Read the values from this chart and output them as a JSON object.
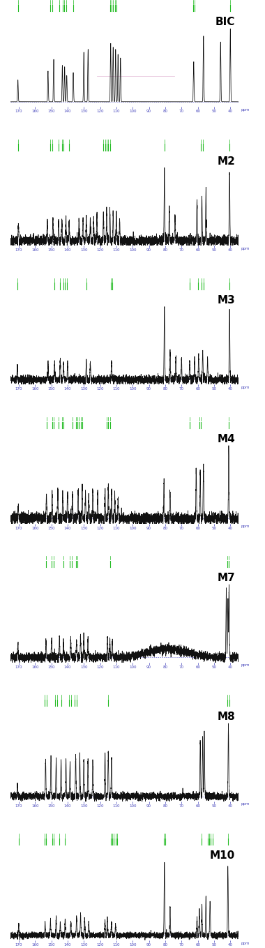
{
  "panels": [
    {
      "label": "BIC",
      "peaks": [
        170.5,
        152.0,
        148.5,
        143.2,
        141.8,
        140.5,
        136.5,
        130.0,
        127.4,
        113.5,
        112.0,
        110.5,
        109.0,
        107.5,
        62.5,
        56.5,
        46.0,
        40.0
      ],
      "heights": [
        0.3,
        0.42,
        0.58,
        0.5,
        0.48,
        0.36,
        0.4,
        0.68,
        0.72,
        0.8,
        0.75,
        0.72,
        0.65,
        0.6,
        0.55,
        0.9,
        0.82,
        1.0
      ],
      "noise_level": 0.0,
      "has_noise": false,
      "baseline_bump": false,
      "has_pink_line": true,
      "annotation_groups": [
        {
          "x": 170.5,
          "n": 1
        },
        {
          "x": 150.0,
          "n": 2
        },
        {
          "x": 145.0,
          "n": 1
        },
        {
          "x": 142.0,
          "n": 3
        },
        {
          "x": 136.5,
          "n": 1
        },
        {
          "x": 112.0,
          "n": 5
        },
        {
          "x": 62.5,
          "n": 2
        },
        {
          "x": 40.0,
          "n": 1
        }
      ]
    },
    {
      "label": "M2",
      "peaks": [
        170.2,
        152.5,
        149.0,
        145.5,
        143.5,
        141.0,
        139.0,
        133.0,
        130.5,
        128.5,
        126.0,
        124.0,
        122.0,
        118.0,
        116.0,
        114.0,
        112.0,
        110.0,
        108.0,
        80.5,
        77.5,
        74.0,
        60.5,
        57.5,
        55.0,
        40.5
      ],
      "heights": [
        0.25,
        0.28,
        0.32,
        0.3,
        0.28,
        0.32,
        0.25,
        0.3,
        0.32,
        0.35,
        0.3,
        0.28,
        0.35,
        0.38,
        0.4,
        0.45,
        0.4,
        0.38,
        0.3,
        1.0,
        0.45,
        0.35,
        0.6,
        0.65,
        0.72,
        1.0
      ],
      "noise_level": 0.035,
      "has_noise": true,
      "baseline_bump": false,
      "has_pink_line": false,
      "annotation_groups": [
        {
          "x": 170.2,
          "n": 1
        },
        {
          "x": 150.0,
          "n": 2
        },
        {
          "x": 145.5,
          "n": 1
        },
        {
          "x": 143.0,
          "n": 2
        },
        {
          "x": 139.0,
          "n": 1
        },
        {
          "x": 116.0,
          "n": 5
        },
        {
          "x": 80.5,
          "n": 1
        },
        {
          "x": 57.5,
          "n": 2
        },
        {
          "x": 40.5,
          "n": 1
        }
      ]
    },
    {
      "label": "M3",
      "peaks": [
        170.8,
        152.0,
        148.0,
        144.5,
        142.5,
        140.0,
        128.5,
        126.0,
        113.0,
        80.5,
        77.0,
        73.5,
        70.0,
        65.0,
        62.0,
        59.5,
        57.0,
        54.0,
        40.5
      ],
      "heights": [
        0.18,
        0.22,
        0.25,
        0.28,
        0.22,
        0.2,
        0.25,
        0.22,
        0.25,
        1.0,
        0.38,
        0.32,
        0.28,
        0.25,
        0.3,
        0.32,
        0.38,
        0.28,
        0.98
      ],
      "noise_level": 0.028,
      "has_noise": true,
      "baseline_bump": false,
      "has_pink_line": false,
      "annotation_groups": [
        {
          "x": 170.8,
          "n": 1
        },
        {
          "x": 148.0,
          "n": 1
        },
        {
          "x": 144.5,
          "n": 1
        },
        {
          "x": 141.5,
          "n": 3
        },
        {
          "x": 128.5,
          "n": 1
        },
        {
          "x": 113.0,
          "n": 2
        },
        {
          "x": 65.0,
          "n": 1
        },
        {
          "x": 60.0,
          "n": 1
        },
        {
          "x": 57.0,
          "n": 2
        },
        {
          "x": 40.5,
          "n": 1
        }
      ]
    },
    {
      "label": "M4",
      "peaks": [
        170.3,
        153.0,
        149.5,
        146.0,
        143.0,
        140.0,
        137.0,
        133.5,
        131.0,
        129.0,
        127.0,
        124.5,
        121.5,
        117.0,
        115.0,
        113.0,
        111.0,
        109.0,
        80.8,
        77.0,
        61.0,
        58.5,
        56.5,
        41.0
      ],
      "heights": [
        0.2,
        0.32,
        0.35,
        0.38,
        0.32,
        0.35,
        0.32,
        0.38,
        0.42,
        0.35,
        0.32,
        0.38,
        0.32,
        0.4,
        0.45,
        0.4,
        0.35,
        0.28,
        0.5,
        0.4,
        0.68,
        0.62,
        0.75,
        0.98
      ],
      "noise_level": 0.038,
      "has_noise": true,
      "baseline_bump": false,
      "has_pink_line": false,
      "annotation_groups": [
        {
          "x": 153.0,
          "n": 1
        },
        {
          "x": 149.0,
          "n": 2
        },
        {
          "x": 145.5,
          "n": 1
        },
        {
          "x": 143.0,
          "n": 2
        },
        {
          "x": 137.0,
          "n": 1
        },
        {
          "x": 133.0,
          "n": 5
        },
        {
          "x": 115.0,
          "n": 3
        },
        {
          "x": 65.0,
          "n": 1
        },
        {
          "x": 58.5,
          "n": 2
        },
        {
          "x": 41.0,
          "n": 1
        }
      ]
    },
    {
      "label": "M7",
      "peaks": [
        170.5,
        153.2,
        149.8,
        145.0,
        142.5,
        138.0,
        134.5,
        132.0,
        130.0,
        127.5,
        115.5,
        114.0,
        112.5,
        42.5,
        41.5,
        40.8
      ],
      "heights": [
        0.18,
        0.22,
        0.25,
        0.28,
        0.22,
        0.25,
        0.22,
        0.28,
        0.3,
        0.25,
        0.28,
        0.25,
        0.22,
        0.9,
        0.8,
        0.98
      ],
      "noise_level": 0.03,
      "has_noise": true,
      "baseline_bump": true,
      "has_pink_line": false,
      "annotation_groups": [
        {
          "x": 153.2,
          "n": 1
        },
        {
          "x": 149.2,
          "n": 2
        },
        {
          "x": 142.5,
          "n": 1
        },
        {
          "x": 138.0,
          "n": 2
        },
        {
          "x": 134.5,
          "n": 2
        },
        {
          "x": 114.0,
          "n": 1
        },
        {
          "x": 41.5,
          "n": 2
        }
      ]
    },
    {
      "label": "M8",
      "peaks": [
        170.8,
        153.5,
        150.2,
        147.0,
        144.0,
        141.0,
        138.5,
        135.0,
        132.5,
        130.0,
        127.5,
        124.5,
        117.0,
        115.0,
        113.0,
        58.5,
        57.0,
        56.0,
        41.2
      ],
      "heights": [
        0.18,
        0.5,
        0.55,
        0.52,
        0.48,
        0.52,
        0.48,
        0.55,
        0.58,
        0.52,
        0.48,
        0.5,
        0.58,
        0.62,
        0.55,
        0.75,
        0.82,
        0.88,
        0.98
      ],
      "noise_level": 0.025,
      "has_noise": true,
      "baseline_bump": false,
      "has_pink_line": false,
      "annotation_groups": [
        {
          "x": 153.5,
          "n": 2
        },
        {
          "x": 147.0,
          "n": 2
        },
        {
          "x": 144.0,
          "n": 1
        },
        {
          "x": 138.5,
          "n": 2
        },
        {
          "x": 135.0,
          "n": 2
        },
        {
          "x": 115.0,
          "n": 1
        },
        {
          "x": 41.2,
          "n": 2
        }
      ]
    },
    {
      "label": "M10",
      "peaks": [
        170.0,
        153.8,
        150.5,
        147.0,
        144.5,
        141.5,
        138.0,
        134.5,
        132.0,
        129.5,
        127.0,
        117.0,
        115.5,
        113.0,
        110.5,
        80.5,
        77.0,
        60.5,
        59.0,
        57.5,
        55.0,
        52.5,
        41.5
      ],
      "heights": [
        0.14,
        0.18,
        0.22,
        0.25,
        0.18,
        0.22,
        0.18,
        0.25,
        0.28,
        0.22,
        0.18,
        0.22,
        0.25,
        0.18,
        0.15,
        1.0,
        0.38,
        0.25,
        0.38,
        0.42,
        0.55,
        0.48,
        0.95
      ],
      "noise_level": 0.02,
      "has_noise": true,
      "baseline_bump": false,
      "has_pink_line": false,
      "annotation_groups": [
        {
          "x": 170.0,
          "n": 1
        },
        {
          "x": 153.8,
          "n": 2
        },
        {
          "x": 149.0,
          "n": 2
        },
        {
          "x": 145.0,
          "n": 1
        },
        {
          "x": 141.5,
          "n": 1
        },
        {
          "x": 111.5,
          "n": 5
        },
        {
          "x": 80.5,
          "n": 2
        },
        {
          "x": 57.5,
          "n": 1
        },
        {
          "x": 52.5,
          "n": 4
        },
        {
          "x": 41.5,
          "n": 1
        }
      ]
    }
  ],
  "xmin": 35,
  "xmax": 175,
  "xticks": [
    170,
    160,
    150,
    140,
    130,
    120,
    110,
    100,
    90,
    80,
    70,
    60,
    50,
    40
  ],
  "tick_color": "#4444bb",
  "annotation_color": "#22bb22",
  "label_color": "#000000",
  "spectrum_color": "#111111",
  "background_color": "#ffffff",
  "axis_color": "#5555cc",
  "pink_line_color": "#ddaacc"
}
